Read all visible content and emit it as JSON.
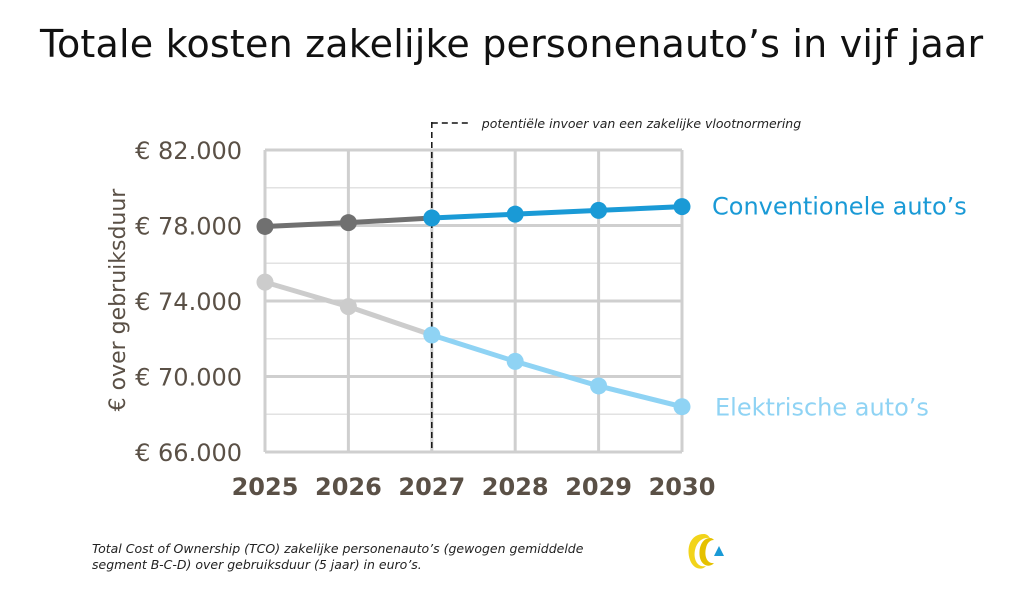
{
  "page": {
    "title": "Totale kosten zakelijke personenauto’s in vijf jaar",
    "caption_line1": "Total Cost of Ownership (TCO) zakelijke personenauto’s (gewogen gemiddelde",
    "caption_line2": "segment B-C-D) over gebruiksduur (5 jaar) in euro’s."
  },
  "chart_data": {
    "type": "line",
    "title": "Totale kosten zakelijke personenauto’s in vijf jaar",
    "xlabel": "",
    "ylabel": "€ over gebruiksduur",
    "x": [
      2025,
      2026,
      2027,
      2028,
      2029,
      2030
    ],
    "ylim": [
      66000,
      82000
    ],
    "y_ticks": [
      66000,
      70000,
      74000,
      78000,
      82000
    ],
    "y_tick_labels": [
      "€ 66.000",
      "€ 70.000",
      "€ 74.000",
      "€ 78.000",
      "€ 82.000"
    ],
    "x_tick_labels": [
      "2025",
      "2026",
      "2027",
      "2028",
      "2029",
      "2030"
    ],
    "grid": true,
    "legend": "labels at line ends (right)",
    "series": [
      {
        "name": "Conventionele auto’s",
        "values": [
          77950,
          78150,
          78400,
          78600,
          78800,
          79000
        ],
        "color": "#1a9ad6",
        "before_color": "#707070"
      },
      {
        "name": "Elektrische auto’s",
        "values": [
          75000,
          73700,
          72200,
          70800,
          69500,
          68400
        ],
        "color": "#8fd3f4",
        "before_color": "#cccccc"
      }
    ],
    "annotation": {
      "x": 2027,
      "text": "potentiële invoer van een zakelijke vlootnormering",
      "style": "dashed vertical line"
    }
  }
}
